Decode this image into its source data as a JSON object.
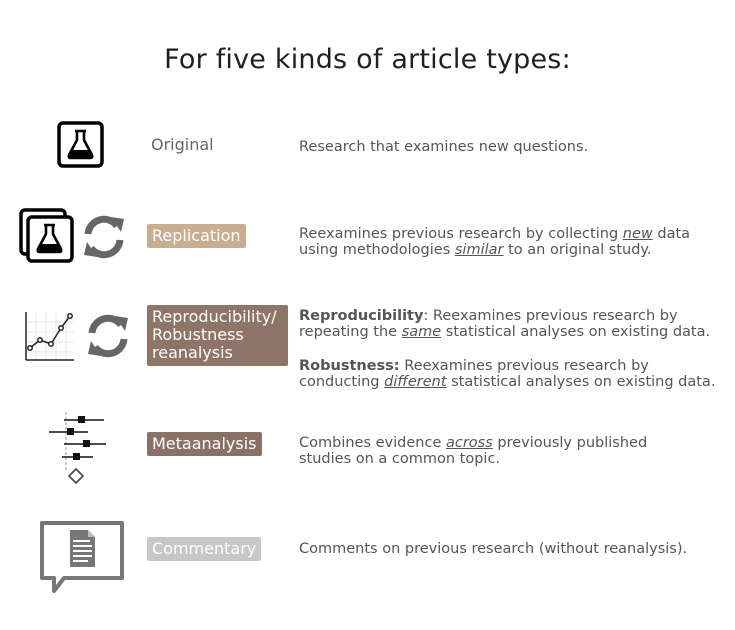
{
  "title": "For five kinds of article types:",
  "colors": {
    "replication": "#c8ad91",
    "reproducibility": "#8f7468",
    "metaanalysis": "#8a7168",
    "commentary": "#c7c7c7",
    "icon_gray": "#777777"
  },
  "rows": [
    {
      "label": "Original",
      "icon": "flask-icon",
      "desc_line1": "Research that examines new questions."
    },
    {
      "label": "Replication",
      "icon": "stacked-flask-icon",
      "icon2": "refresh-icon",
      "desc_line1_a": "Reexamines previous research by collecting ",
      "desc_line1_em": "new",
      "desc_line1_b": " data",
      "desc_line2_a": "using methodologies ",
      "desc_line2_em": "similar",
      "desc_line2_b": " to an original study."
    },
    {
      "label_line1": "Reproducibility/",
      "label_line2": "Robustness",
      "label_line3": "reanalysis",
      "icon": "line-chart-icon",
      "icon2": "refresh-icon",
      "repro_bold": "Reproducibility",
      "repro_line1": ": Reexamines previous research by",
      "repro_line2_a": "repeating the ",
      "repro_line2_em": "same",
      "repro_line2_b": " statistical analyses on existing data.",
      "robust_bold": "Robustness:",
      "robust_line1": " Reexamines previous research by",
      "robust_line2_a": "conducting ",
      "robust_line2_em": "different",
      "robust_line2_b": " statistical analyses on existing data."
    },
    {
      "label": "Metaanalysis",
      "icon": "forest-plot-icon",
      "desc_line1_a": "Combines evidence ",
      "desc_line1_em": "across",
      "desc_line1_b": " previously published",
      "desc_line2": "studies on a common topic."
    },
    {
      "label": "Commentary",
      "icon": "comment-document-icon",
      "desc_line1": "Comments on previous research (without reanalysis)."
    }
  ]
}
